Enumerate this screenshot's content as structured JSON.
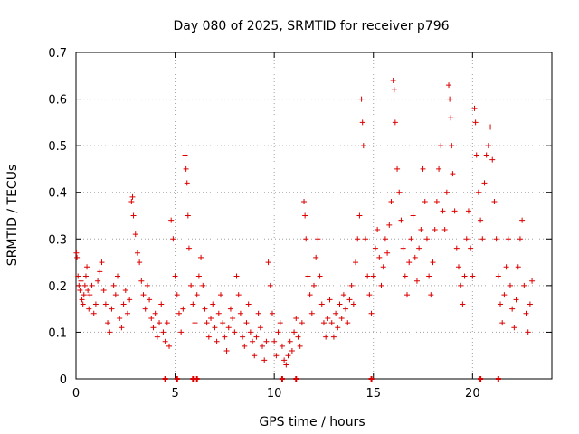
{
  "chart_data": {
    "type": "scatter",
    "title": "Day 080 of 2025, SRMTID for receiver p796",
    "xlabel": "GPS time / hours",
    "ylabel": "SRMTID / TECUs",
    "xlim": [
      0,
      24
    ],
    "ylim": [
      0,
      0.7
    ],
    "x_ticks": [
      0,
      5,
      10,
      15,
      20
    ],
    "x_tick_labels": [
      "0",
      "5",
      "10",
      "15",
      "20"
    ],
    "y_ticks": [
      0,
      0.1,
      0.2,
      0.3,
      0.4,
      0.5,
      0.6,
      0.7
    ],
    "y_tick_labels": [
      "0",
      "0.1",
      "0.2",
      "0.3",
      "0.4",
      "0.5",
      "0.6",
      "0.7"
    ],
    "grid": true,
    "marker": "+",
    "series_color": "#dd0000",
    "series": [
      {
        "name": "SRMTID",
        "points": [
          [
            0.02,
            0.27
          ],
          [
            0.05,
            0.26
          ],
          [
            0.1,
            0.22
          ],
          [
            0.15,
            0.2
          ],
          [
            0.2,
            0.19
          ],
          [
            0.25,
            0.21
          ],
          [
            0.3,
            0.17
          ],
          [
            0.35,
            0.16
          ],
          [
            0.4,
            0.18
          ],
          [
            0.45,
            0.2
          ],
          [
            0.5,
            0.22
          ],
          [
            0.55,
            0.24
          ],
          [
            0.6,
            0.19
          ],
          [
            0.65,
            0.15
          ],
          [
            0.7,
            0.18
          ],
          [
            0.8,
            0.2
          ],
          [
            0.9,
            0.14
          ],
          [
            1.0,
            0.16
          ],
          [
            1.1,
            0.21
          ],
          [
            1.2,
            0.23
          ],
          [
            1.3,
            0.25
          ],
          [
            1.4,
            0.19
          ],
          [
            1.5,
            0.16
          ],
          [
            1.6,
            0.12
          ],
          [
            1.7,
            0.1
          ],
          [
            1.8,
            0.15
          ],
          [
            1.9,
            0.2
          ],
          [
            2.0,
            0.18
          ],
          [
            2.1,
            0.22
          ],
          [
            2.2,
            0.13
          ],
          [
            2.3,
            0.11
          ],
          [
            2.4,
            0.16
          ],
          [
            2.5,
            0.19
          ],
          [
            2.6,
            0.14
          ],
          [
            2.7,
            0.17
          ],
          [
            2.8,
            0.38
          ],
          [
            2.85,
            0.39
          ],
          [
            2.9,
            0.35
          ],
          [
            3.0,
            0.31
          ],
          [
            3.1,
            0.27
          ],
          [
            3.2,
            0.25
          ],
          [
            3.3,
            0.21
          ],
          [
            3.4,
            0.18
          ],
          [
            3.5,
            0.15
          ],
          [
            3.6,
            0.2
          ],
          [
            3.7,
            0.17
          ],
          [
            3.8,
            0.13
          ],
          [
            3.9,
            0.11
          ],
          [
            4.0,
            0.14
          ],
          [
            4.1,
            0.09
          ],
          [
            4.2,
            0.12
          ],
          [
            4.3,
            0.16
          ],
          [
            4.4,
            0.1
          ],
          [
            4.5,
            0.08
          ],
          [
            4.6,
            0.12
          ],
          [
            4.7,
            0.07
          ],
          [
            4.8,
            0.34
          ],
          [
            4.9,
            0.3
          ],
          [
            5.0,
            0.22
          ],
          [
            5.1,
            0.18
          ],
          [
            5.2,
            0.14
          ],
          [
            5.3,
            0.1
          ],
          [
            5.4,
            0.15
          ],
          [
            5.5,
            0.48
          ],
          [
            5.55,
            0.45
          ],
          [
            5.6,
            0.42
          ],
          [
            5.65,
            0.35
          ],
          [
            5.7,
            0.28
          ],
          [
            5.8,
            0.2
          ],
          [
            5.9,
            0.16
          ],
          [
            6.0,
            0.12
          ],
          [
            6.1,
            0.18
          ],
          [
            6.2,
            0.22
          ],
          [
            6.3,
            0.26
          ],
          [
            6.4,
            0.2
          ],
          [
            6.5,
            0.15
          ],
          [
            6.6,
            0.12
          ],
          [
            6.7,
            0.09
          ],
          [
            6.8,
            0.13
          ],
          [
            6.9,
            0.16
          ],
          [
            7.0,
            0.11
          ],
          [
            7.1,
            0.08
          ],
          [
            7.2,
            0.14
          ],
          [
            7.3,
            0.18
          ],
          [
            7.4,
            0.12
          ],
          [
            7.5,
            0.09
          ],
          [
            7.6,
            0.06
          ],
          [
            7.7,
            0.11
          ],
          [
            7.8,
            0.15
          ],
          [
            7.9,
            0.13
          ],
          [
            8.0,
            0.1
          ],
          [
            8.1,
            0.22
          ],
          [
            8.2,
            0.18
          ],
          [
            8.3,
            0.14
          ],
          [
            8.4,
            0.09
          ],
          [
            8.5,
            0.07
          ],
          [
            8.6,
            0.12
          ],
          [
            8.7,
            0.16
          ],
          [
            8.8,
            0.1
          ],
          [
            8.9,
            0.08
          ],
          [
            9.0,
            0.05
          ],
          [
            9.1,
            0.09
          ],
          [
            9.2,
            0.14
          ],
          [
            9.3,
            0.11
          ],
          [
            9.4,
            0.07
          ],
          [
            9.5,
            0.04
          ],
          [
            9.6,
            0.08
          ],
          [
            9.7,
            0.25
          ],
          [
            9.8,
            0.2
          ],
          [
            9.9,
            0.14
          ],
          [
            10.0,
            0.08
          ],
          [
            10.1,
            0.05
          ],
          [
            10.2,
            0.1
          ],
          [
            10.3,
            0.12
          ],
          [
            10.4,
            0.07
          ],
          [
            10.5,
            0.04
          ],
          [
            10.6,
            0.03
          ],
          [
            10.7,
            0.05
          ],
          [
            10.8,
            0.08
          ],
          [
            10.9,
            0.06
          ],
          [
            11.0,
            0.1
          ],
          [
            11.1,
            0.13
          ],
          [
            11.2,
            0.09
          ],
          [
            11.3,
            0.07
          ],
          [
            11.4,
            0.12
          ],
          [
            11.5,
            0.38
          ],
          [
            11.55,
            0.35
          ],
          [
            11.6,
            0.3
          ],
          [
            11.7,
            0.22
          ],
          [
            11.8,
            0.18
          ],
          [
            11.9,
            0.14
          ],
          [
            12.0,
            0.2
          ],
          [
            12.1,
            0.26
          ],
          [
            12.2,
            0.3
          ],
          [
            12.3,
            0.22
          ],
          [
            12.4,
            0.16
          ],
          [
            12.5,
            0.12
          ],
          [
            12.6,
            0.09
          ],
          [
            12.7,
            0.13
          ],
          [
            12.8,
            0.17
          ],
          [
            12.9,
            0.12
          ],
          [
            13.0,
            0.09
          ],
          [
            13.1,
            0.14
          ],
          [
            13.2,
            0.11
          ],
          [
            13.3,
            0.16
          ],
          [
            13.4,
            0.13
          ],
          [
            13.5,
            0.18
          ],
          [
            13.6,
            0.15
          ],
          [
            13.7,
            0.12
          ],
          [
            13.8,
            0.17
          ],
          [
            13.9,
            0.2
          ],
          [
            14.0,
            0.16
          ],
          [
            14.1,
            0.25
          ],
          [
            14.2,
            0.3
          ],
          [
            14.3,
            0.35
          ],
          [
            14.4,
            0.6
          ],
          [
            14.45,
            0.55
          ],
          [
            14.5,
            0.5
          ],
          [
            14.6,
            0.3
          ],
          [
            14.7,
            0.22
          ],
          [
            14.8,
            0.18
          ],
          [
            14.9,
            0.14
          ],
          [
            15.0,
            0.22
          ],
          [
            15.1,
            0.28
          ],
          [
            15.2,
            0.32
          ],
          [
            15.3,
            0.26
          ],
          [
            15.4,
            0.2
          ],
          [
            15.5,
            0.24
          ],
          [
            15.6,
            0.3
          ],
          [
            15.7,
            0.27
          ],
          [
            15.8,
            0.33
          ],
          [
            15.9,
            0.38
          ],
          [
            16.0,
            0.64
          ],
          [
            16.05,
            0.62
          ],
          [
            16.1,
            0.55
          ],
          [
            16.2,
            0.45
          ],
          [
            16.3,
            0.4
          ],
          [
            16.4,
            0.34
          ],
          [
            16.5,
            0.28
          ],
          [
            16.6,
            0.22
          ],
          [
            16.7,
            0.18
          ],
          [
            16.8,
            0.25
          ],
          [
            16.9,
            0.3
          ],
          [
            17.0,
            0.35
          ],
          [
            17.1,
            0.26
          ],
          [
            17.2,
            0.21
          ],
          [
            17.3,
            0.28
          ],
          [
            17.4,
            0.32
          ],
          [
            17.5,
            0.45
          ],
          [
            17.6,
            0.38
          ],
          [
            17.7,
            0.3
          ],
          [
            17.8,
            0.22
          ],
          [
            17.9,
            0.18
          ],
          [
            18.0,
            0.25
          ],
          [
            18.1,
            0.32
          ],
          [
            18.2,
            0.38
          ],
          [
            18.3,
            0.45
          ],
          [
            18.4,
            0.5
          ],
          [
            18.5,
            0.36
          ],
          [
            18.6,
            0.32
          ],
          [
            18.7,
            0.4
          ],
          [
            18.8,
            0.63
          ],
          [
            18.85,
            0.6
          ],
          [
            18.9,
            0.56
          ],
          [
            18.95,
            0.5
          ],
          [
            19.0,
            0.44
          ],
          [
            19.1,
            0.36
          ],
          [
            19.2,
            0.28
          ],
          [
            19.3,
            0.24
          ],
          [
            19.4,
            0.2
          ],
          [
            19.5,
            0.16
          ],
          [
            19.6,
            0.22
          ],
          [
            19.7,
            0.3
          ],
          [
            19.8,
            0.36
          ],
          [
            19.9,
            0.28
          ],
          [
            20.0,
            0.22
          ],
          [
            20.1,
            0.58
          ],
          [
            20.15,
            0.55
          ],
          [
            20.2,
            0.48
          ],
          [
            20.3,
            0.4
          ],
          [
            20.4,
            0.34
          ],
          [
            20.5,
            0.3
          ],
          [
            20.6,
            0.42
          ],
          [
            20.7,
            0.48
          ],
          [
            20.8,
            0.5
          ],
          [
            20.9,
            0.54
          ],
          [
            21.0,
            0.47
          ],
          [
            21.1,
            0.38
          ],
          [
            21.2,
            0.3
          ],
          [
            21.3,
            0.22
          ],
          [
            21.4,
            0.16
          ],
          [
            21.5,
            0.12
          ],
          [
            21.6,
            0.18
          ],
          [
            21.7,
            0.24
          ],
          [
            21.8,
            0.3
          ],
          [
            21.9,
            0.2
          ],
          [
            22.0,
            0.15
          ],
          [
            22.1,
            0.11
          ],
          [
            22.2,
            0.17
          ],
          [
            22.3,
            0.24
          ],
          [
            22.4,
            0.3
          ],
          [
            22.5,
            0.34
          ],
          [
            22.6,
            0.2
          ],
          [
            22.7,
            0.14
          ],
          [
            22.8,
            0.1
          ],
          [
            22.9,
            0.16
          ],
          [
            23.0,
            0.21
          ]
        ]
      }
    ],
    "zero_line_markers_x": [
      4.5,
      5.1,
      5.9,
      6.1,
      10.4,
      11.1,
      14.9,
      20.4,
      21.3
    ]
  }
}
